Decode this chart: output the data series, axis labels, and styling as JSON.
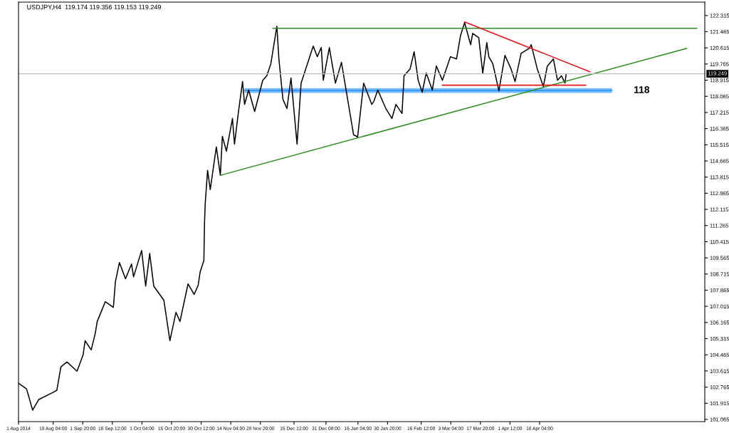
{
  "chart_data": {
    "type": "line",
    "title": "USDJPY,H4  119.174 119.356 119.153 119.249",
    "xlim": [
      "2014-08-01T00:00",
      "2015-07-07T00:00"
    ],
    "ylim": [
      100.95,
      123.02
    ],
    "xticks": [
      {
        "value": "2014-08-01T00:00",
        "label": "1 Aug 2014"
      },
      {
        "value": "2014-08-18T04:00",
        "label": "18 Aug 04:00"
      },
      {
        "value": "2014-09-01T20:00",
        "label": "1 Sep 20:00"
      },
      {
        "value": "2014-09-16T12:00",
        "label": "16 Sep 12:00"
      },
      {
        "value": "2014-10-01T04:00",
        "label": "1 Oct 04:00"
      },
      {
        "value": "2014-10-15T20:00",
        "label": "15 Oct 20:00"
      },
      {
        "value": "2014-10-30T12:00",
        "label": "30 Oct 12:00"
      },
      {
        "value": "2014-11-14T04:00",
        "label": "14 Nov 04:00"
      },
      {
        "value": "2014-11-28T20:00",
        "label": "28 Nov 20:00"
      },
      {
        "value": "2014-12-15T12:00",
        "label": "15 Dec 12:00"
      },
      {
        "value": "2014-12-31T08:00",
        "label": "31 Dec 08:00"
      },
      {
        "value": "2015-01-16T04:00",
        "label": "16 Jan 04:00"
      },
      {
        "value": "2015-01-30T20:00",
        "label": "30 Jan 20:00"
      },
      {
        "value": "2015-02-16T12:00",
        "label": "16 Feb 12:00"
      },
      {
        "value": "2015-03-03T04:00",
        "label": "3 Mar 04:00"
      },
      {
        "value": "2015-03-17T20:00",
        "label": "17 Mar 20:00"
      },
      {
        "value": "2015-04-01T12:00",
        "label": "1 Apr 12:00"
      },
      {
        "value": "2015-04-16T04:00",
        "label": "16 Apr 04:00"
      }
    ],
    "yticks": [
      101.065,
      101.915,
      102.765,
      103.615,
      104.465,
      105.315,
      106.165,
      107.015,
      107.865,
      108.715,
      109.565,
      110.415,
      111.265,
      112.115,
      112.965,
      113.815,
      114.665,
      115.515,
      116.365,
      117.215,
      118.065,
      118.915,
      119.765,
      120.615,
      121.465,
      122.315
    ],
    "grid": false,
    "legend": false,
    "ref_lines": [
      {
        "axis": "y",
        "value": 119.249,
        "label": "119.249",
        "color": "#c0c0c0"
      }
    ],
    "annotations": [
      "118"
    ],
    "series": [
      {
        "color": "#1e90ff",
        "x": [
          "2014-11-21",
          "2015-05-22"
        ],
        "values": [
          118.37,
          118.37
        ],
        "lower": [
          118.24,
          118.24
        ],
        "upper": [
          118.5,
          118.5
        ]
      },
      {
        "color": "#000000",
        "x": [
          "2014-08-01",
          "2014-08-05",
          "2014-08-08",
          "2014-08-11",
          "2014-08-18",
          "2014-08-20",
          "2014-08-22",
          "2014-08-25",
          "2014-08-30",
          "2014-09-02",
          "2014-09-03",
          "2014-09-06",
          "2014-09-08",
          "2014-09-09",
          "2014-09-13",
          "2014-09-17",
          "2014-09-18",
          "2014-09-20",
          "2014-09-23",
          "2014-09-26",
          "2014-09-27",
          "2014-10-01",
          "2014-10-03",
          "2014-10-05",
          "2014-10-07",
          "2014-10-12",
          "2014-10-15",
          "2014-10-18",
          "2014-10-20",
          "2014-10-24",
          "2014-10-27",
          "2014-10-29",
          "2014-10-30",
          "2014-10-31T20:00",
          "2014-11-01T04:00",
          "2014-11-01T12:00",
          "2014-11-02T16:00",
          "2014-11-04",
          "2014-11-06",
          "2014-11-07",
          "2014-11-09",
          "2014-11-10",
          "2014-11-12",
          "2014-11-15",
          "2014-11-16",
          "2014-11-18",
          "2014-11-20",
          "2014-11-21",
          "2014-11-23",
          "2014-11-26",
          "2014-11-30",
          "2014-12-02",
          "2014-12-04",
          "2014-12-07",
          "2014-12-08",
          "2014-12-10",
          "2014-12-12",
          "2014-12-14",
          "2014-12-17",
          "2014-12-19",
          "2014-12-25",
          "2014-12-27",
          "2014-12-29",
          "2014-12-30",
          "2015-01-02",
          "2015-01-05",
          "2015-01-08",
          "2015-01-14",
          "2015-01-16",
          "2015-01-19",
          "2015-01-23",
          "2015-01-24",
          "2015-01-26",
          "2015-01-30",
          "2015-02-02",
          "2015-02-04",
          "2015-02-07",
          "2015-02-08",
          "2015-02-11",
          "2015-02-13",
          "2015-02-15",
          "2015-02-17",
          "2015-02-19",
          "2015-02-22",
          "2015-02-24",
          "2015-02-27",
          "2015-03-03",
          "2015-03-06",
          "2015-03-08",
          "2015-03-10",
          "2015-03-13",
          "2015-03-14",
          "2015-03-17",
          "2015-03-19",
          "2015-03-21",
          "2015-03-22",
          "2015-03-24",
          "2015-03-27",
          "2015-03-30",
          "2015-04-02",
          "2015-04-04",
          "2015-04-07",
          "2015-04-11",
          "2015-04-12",
          "2015-04-15",
          "2015-04-18",
          "2015-04-20",
          "2015-04-23",
          "2015-04-25",
          "2015-04-27",
          "2015-04-28T18:00",
          "2015-04-29T08:00"
        ],
        "values": [
          102.97,
          102.67,
          101.55,
          102.11,
          102.48,
          102.6,
          103.83,
          104.09,
          103.6,
          104.46,
          105.21,
          104.72,
          105.58,
          106.22,
          107.26,
          106.96,
          108.31,
          109.32,
          108.46,
          109.24,
          108.57,
          109.95,
          108.08,
          109.8,
          108.08,
          107.34,
          105.21,
          106.7,
          106.22,
          108.2,
          107.64,
          108.12,
          108.83,
          109.43,
          111.45,
          112.42,
          114.17,
          113.16,
          114.66,
          115.4,
          113.91,
          115.96,
          115.18,
          116.9,
          115.55,
          117.27,
          118.84,
          117.64,
          118.39,
          117.27,
          118.91,
          119.14,
          119.77,
          121.75,
          120.03,
          117.91,
          117.42,
          119.03,
          115.55,
          118.76,
          120.71,
          120.15,
          120.63,
          118.91,
          120.63,
          118.76,
          119.85,
          116.04,
          115.93,
          118.76,
          117.64,
          117.79,
          118.39,
          117.42,
          116.9,
          117.64,
          117.16,
          119.14,
          119.51,
          120.41,
          118.91,
          118.28,
          119.29,
          118.39,
          119.66,
          118.91,
          120.15,
          120.03,
          121.27,
          121.94,
          120.78,
          121.38,
          121.15,
          119.29,
          120.89,
          120.15,
          119.77,
          118.35,
          120.22,
          119.51,
          118.84,
          120.33,
          120.59,
          120.78,
          119.51,
          118.58,
          119.66,
          120.03,
          118.91,
          119.14,
          118.76,
          119.25
        ]
      },
      {
        "color": "#2e8b22",
        "x": [
          "2014-12-05",
          "2015-07-03"
        ],
        "values": [
          121.64,
          121.64
        ]
      },
      {
        "color": "#2e8b22",
        "x": [
          "2014-11-09",
          "2015-06-28"
        ],
        "values": [
          113.91,
          120.59
        ]
      },
      {
        "color": "#e8141c",
        "x": [
          "2015-03-10",
          "2015-05-11"
        ],
        "values": [
          121.98,
          119.36
        ]
      },
      {
        "color": "#e8141c",
        "x": [
          "2015-02-27",
          "2015-05-09"
        ],
        "values": [
          118.65,
          118.65
        ]
      }
    ]
  }
}
